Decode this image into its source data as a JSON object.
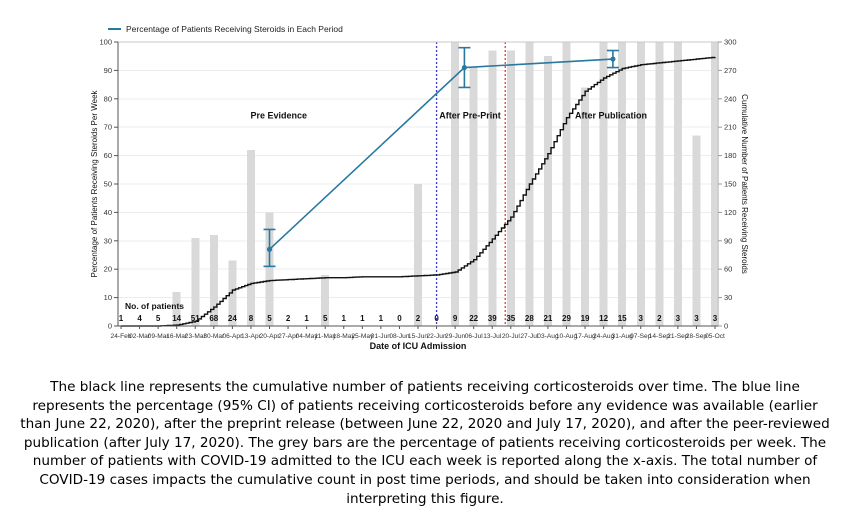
{
  "caption": "The black line represents the cumulative number of patients receiving corticosteroids over time.  The blue line represents the percentage (95% CI) of patients receiving corticosteroids before any evidence was available (earlier than June 22, 2020), after the preprint release (between June 22, 2020 and July 17, 2020), and after the peer-reviewed publication (after July 17, 2020).  The grey bars are the percentage of patients receiving corticosteroids per week.  The number of patients with COVID-19 admitted to the ICU each week is reported along the x-axis.  The total number of COVID-19 cases impacts the cumulative count in post time periods, and should be taken into consideration when interpreting this figure.",
  "colors": {
    "bar": "#d9d9d9",
    "cumulative_line": "#111111",
    "period_line": "#2878a0",
    "preprint_vline": "#3a3ad0",
    "publication_vline": "#e23b3b",
    "grid": "#ececec",
    "axis": "#555555",
    "tick_text": "#333333"
  },
  "chart_data": {
    "type": "combo_bar_line",
    "legend": [
      {
        "label": "Percentage of Patients Receiving Steroids in Each Period",
        "color": "#2878a0"
      }
    ],
    "x_axis": {
      "label": "Date of ICU Admission",
      "tick_labels": [
        "24-Feb",
        "02-Mar",
        "09-Mar",
        "16-Mar",
        "23-Mar",
        "30-Mar",
        "06-Apr",
        "13-Apr",
        "20-Apr",
        "27-Apr",
        "04-May",
        "11-May",
        "18-May",
        "25-May",
        "01-Jun",
        "08-Jun",
        "15-Jun",
        "22-Jun",
        "29-Jun",
        "06-Jul",
        "13-Jul",
        "20-Jul",
        "27-Jul",
        "03-Aug",
        "10-Aug",
        "17-Aug",
        "24-Aug",
        "31-Aug",
        "07-Sep",
        "14-Sep",
        "21-Sep",
        "28-Sep",
        "05-Oct"
      ]
    },
    "y_axis_left": {
      "label": "Percentage of Patients Receiving Steroids Per Week",
      "min": 0,
      "max": 100,
      "tick_step": 10
    },
    "y_axis_right": {
      "label": "Cumulative Number of Patients Receiving Steroids",
      "min": 0,
      "max": 300,
      "tick_step": 30
    },
    "patients_row": {
      "label": "No. of patients",
      "values": [
        1,
        4,
        5,
        14,
        51,
        68,
        24,
        8,
        5,
        2,
        1,
        5,
        1,
        1,
        1,
        0,
        2,
        0,
        9,
        22,
        39,
        35,
        28,
        21,
        29,
        19,
        12,
        15,
        3,
        2,
        3,
        3,
        3
      ]
    },
    "series": [
      {
        "name": "percentage-receiving-steroids-per-week",
        "type": "bar",
        "axis": "left",
        "values": [
          0,
          0,
          0,
          12,
          31,
          32,
          23,
          62,
          40,
          0,
          0,
          18,
          0,
          0,
          0,
          0,
          50,
          0,
          100,
          91,
          97,
          97,
          100,
          95,
          100,
          84,
          100,
          100,
          100,
          100,
          100,
          67,
          100
        ]
      },
      {
        "name": "cumulative-number-receiving-steroids",
        "type": "step-line",
        "axis": "right",
        "values": [
          0,
          0,
          0,
          1,
          5,
          20,
          38,
          45,
          48,
          49,
          50,
          51,
          51,
          52,
          52,
          52,
          53,
          54,
          57,
          70,
          92,
          115,
          150,
          182,
          220,
          248,
          262,
          272,
          276,
          278,
          280,
          282,
          284
        ]
      },
      {
        "name": "percentage-receiving-steroids-each-period",
        "type": "points-ci",
        "axis": "left",
        "points": [
          {
            "x": 8,
            "y": 27,
            "ci_low": 21,
            "ci_high": 34
          },
          {
            "x": 18.5,
            "y": 91,
            "ci_low": 84,
            "ci_high": 98
          },
          {
            "x": 26.5,
            "y": 94,
            "ci_low": 91,
            "ci_high": 97
          }
        ]
      }
    ],
    "vlines": [
      {
        "name": "preprint-release-line",
        "x": 17.0,
        "color": "#3a3ad0"
      },
      {
        "name": "publication-line",
        "x": 20.7,
        "color": "#e23b3b"
      }
    ],
    "annotations": [
      {
        "text": "Pre Evidence",
        "x": 8.5,
        "y": 73
      },
      {
        "text": "After Pre-Print",
        "x": 18.8,
        "y": 73
      },
      {
        "text": "After Publication",
        "x": 26.4,
        "y": 73
      }
    ]
  }
}
